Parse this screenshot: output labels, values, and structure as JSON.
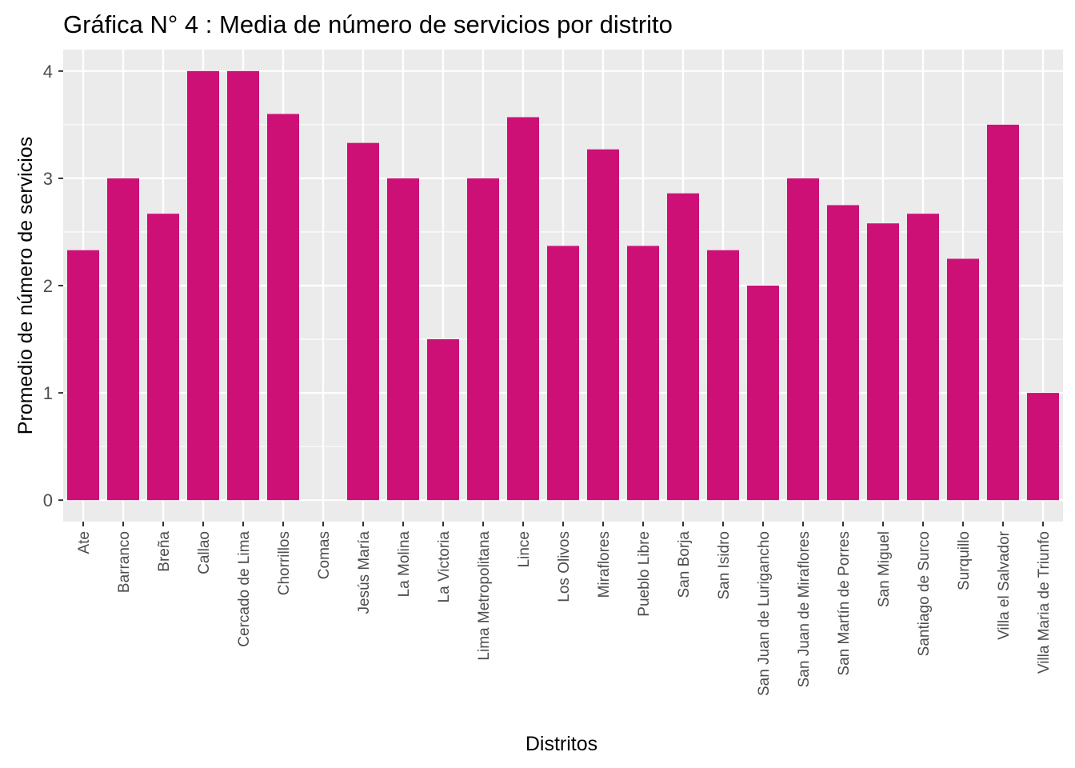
{
  "chart_data": {
    "type": "bar",
    "title": "Gráfica N° 4 : Media de número de servicios por distrito",
    "xlabel": "Distritos",
    "ylabel": "Promedio de número de servicios",
    "categories": [
      "Ate",
      "Barranco",
      "Breña",
      "Callao",
      "Cercado de Lima",
      "Chorrillos",
      "Comas",
      "Jesús María",
      "La Molina",
      "La Victoria",
      "Lima Metropolitana",
      "Lince",
      "Los Olivos",
      "Miraflores",
      "Pueblo Libre",
      "San Borja",
      "San Isidro",
      "San Juan de Lurigancho",
      "San Juan de Miraflores",
      "San Martín de Porres",
      "San Miguel",
      "Santiago de Surco",
      "Surquillo",
      "Villa el Salvador",
      "Villa Maria de Triunfo"
    ],
    "values": [
      2.33,
      3.0,
      2.67,
      4.0,
      4.0,
      3.6,
      0,
      3.33,
      3.0,
      1.5,
      3.0,
      3.57,
      2.37,
      3.27,
      2.37,
      2.86,
      2.33,
      2.0,
      3.0,
      2.75,
      2.58,
      2.67,
      2.25,
      3.5,
      1.0
    ],
    "yticks": [
      0,
      1,
      2,
      3,
      4
    ],
    "ylim": [
      -0.2,
      4.2
    ],
    "grid": true,
    "bar_color": "#CD1076",
    "panel_color": "#EBEBEB",
    "grid_color": "#FFFFFF"
  }
}
